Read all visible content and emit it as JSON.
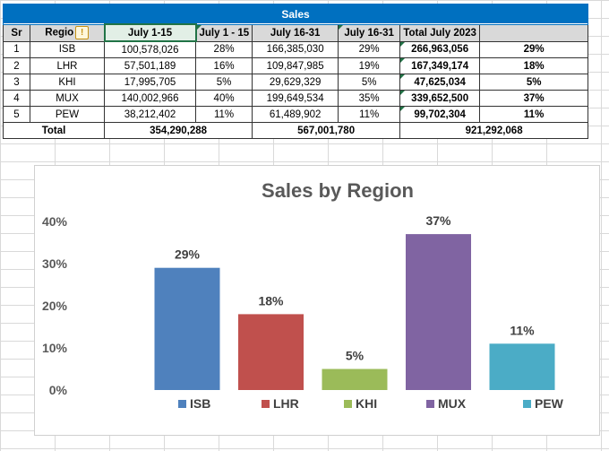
{
  "table": {
    "title": "Sales",
    "headers": [
      "Sr",
      "Regio",
      "July 1-15",
      "July 1 - 15",
      "July 16-31",
      "July 16-31",
      "Total July 2023",
      ""
    ],
    "rows": [
      [
        "1",
        "ISB",
        "100,578,026",
        "28%",
        "166,385,030",
        "29%",
        "266,963,056",
        "29%"
      ],
      [
        "2",
        "LHR",
        "57,501,189",
        "16%",
        "109,847,985",
        "19%",
        "167,349,174",
        "18%"
      ],
      [
        "3",
        "KHI",
        "17,995,705",
        "5%",
        "29,629,329",
        "5%",
        "47,625,034",
        "5%"
      ],
      [
        "4",
        "MUX",
        "140,002,966",
        "40%",
        "199,649,534",
        "35%",
        "339,652,500",
        "37%"
      ],
      [
        "5",
        "PEW",
        "38,212,402",
        "11%",
        "61,489,902",
        "11%",
        "99,702,304",
        "11%"
      ]
    ],
    "total": {
      "label": "Total",
      "first_half": "354,290,288",
      "second_half": "567,001,780",
      "grand": "921,292,068"
    },
    "warning_icon": "warning-icon"
  },
  "chart_data": {
    "type": "bar",
    "title": "Sales by Region",
    "categories": [
      "ISB",
      "LHR",
      "KHI",
      "MUX",
      "PEW"
    ],
    "values": [
      29,
      18,
      5,
      37,
      11
    ],
    "data_labels": [
      "29%",
      "18%",
      "5%",
      "37%",
      "11%"
    ],
    "colors": [
      "#4f81bd",
      "#c0504d",
      "#9bbb59",
      "#8064a2",
      "#4bacc6"
    ],
    "ylim": [
      0,
      40
    ],
    "yticks": [
      "0%",
      "10%",
      "20%",
      "30%",
      "40%"
    ],
    "legend": "bottom",
    "grid": false
  }
}
